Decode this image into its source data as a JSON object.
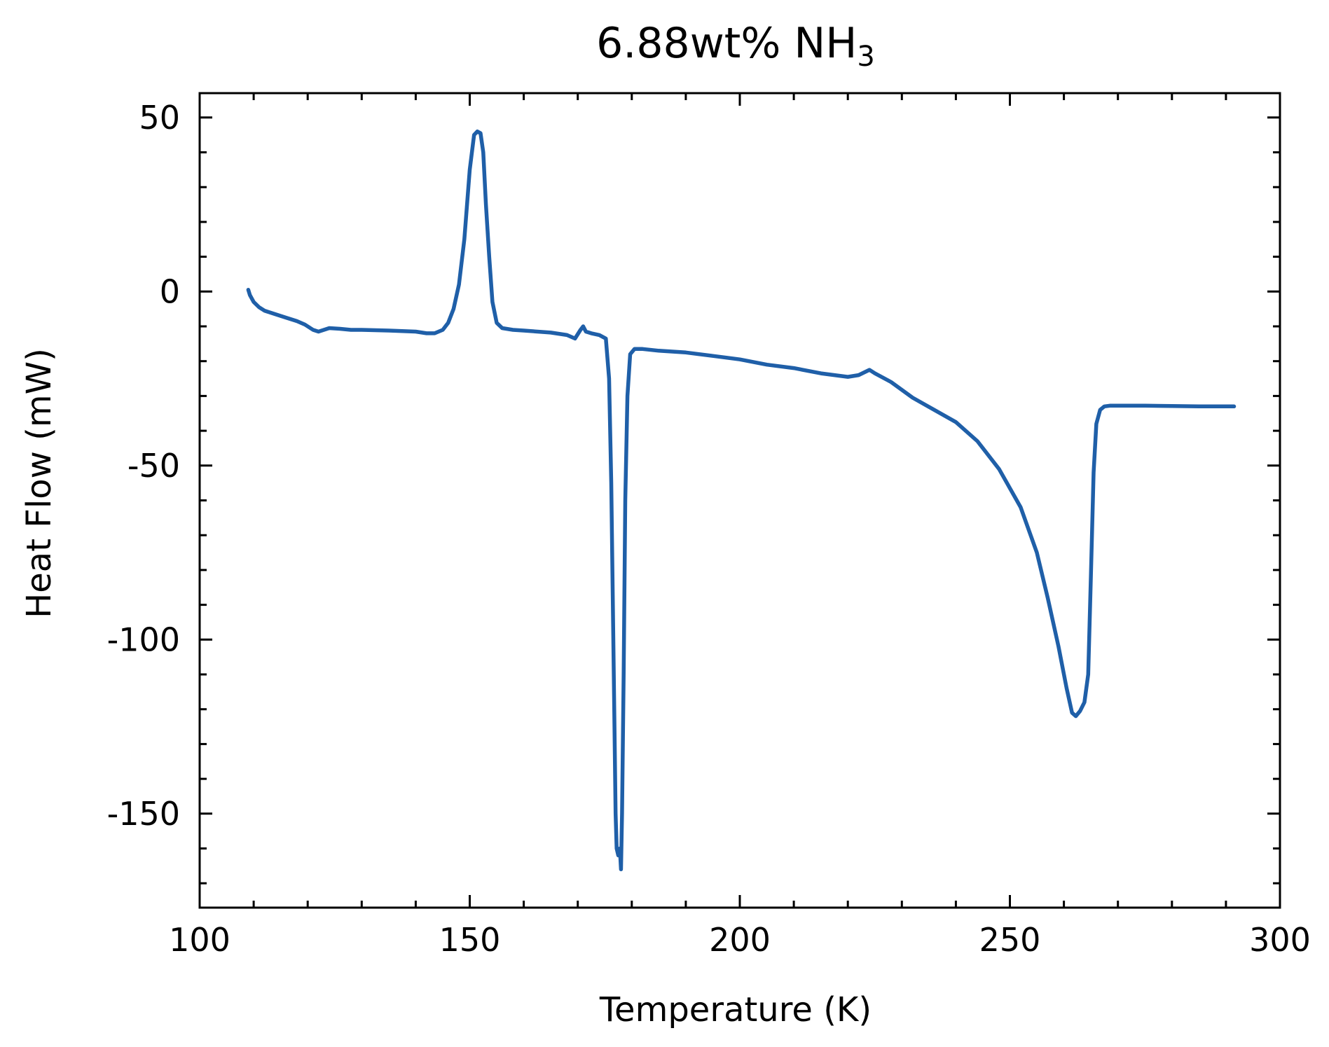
{
  "chart_data": {
    "type": "line",
    "title": "6.88wt% NH",
    "title_subscript": "3",
    "xlabel": "Temperature (K)",
    "ylabel": "Heat Flow (mW)",
    "xlim": [
      100,
      300
    ],
    "ylim": [
      -177,
      57
    ],
    "xticks": [
      100,
      150,
      200,
      250,
      300
    ],
    "xtick_labels": [
      "100",
      "150",
      "200",
      "250",
      "300"
    ],
    "yticks": [
      50,
      0,
      -50,
      -100,
      -150
    ],
    "ytick_labels": [
      "50",
      "0",
      "-50",
      "-100",
      "-150"
    ],
    "x_minor_step": 10,
    "y_minor_step": 10,
    "grid": false,
    "legend": "none",
    "series": [
      {
        "color": "#1f5fa8",
        "x": [
          109.0,
          109.3,
          110,
          111,
          112,
          114,
          116,
          118,
          119.5,
          121,
          122,
          123,
          124,
          126,
          128,
          129.5,
          130,
          135,
          140,
          142,
          143.5,
          145,
          146,
          147,
          148,
          149,
          150,
          150.8,
          151.4,
          152,
          152.5,
          153,
          153.6,
          154.2,
          155,
          156,
          158,
          160,
          165,
          168,
          169.5,
          170.5,
          171,
          171.5,
          172.5,
          174,
          175.2,
          175.8,
          176.2,
          176.5,
          176.8,
          177.0,
          177.2,
          177.5,
          177.8,
          178.0,
          178.2,
          178.5,
          178.8,
          179.2,
          179.7,
          180.5,
          182,
          185,
          190,
          195,
          200,
          205,
          210,
          215,
          220,
          222,
          224,
          225,
          228,
          232,
          236,
          240,
          244,
          248,
          252,
          255,
          257,
          259,
          260.5,
          261.5,
          262.2,
          263,
          263.8,
          264.5,
          265,
          265.5,
          266,
          266.7,
          267.5,
          268.5,
          270,
          275,
          280,
          285,
          290,
          291.5
        ],
        "y": [
          0.5,
          -1,
          -3,
          -4.5,
          -5.5,
          -6.5,
          -7.5,
          -8.5,
          -9.5,
          -11,
          -11.5,
          -11,
          -10.5,
          -10.7,
          -11,
          -11,
          -11,
          -11.2,
          -11.5,
          -12,
          -12,
          -11,
          -9,
          -5,
          2,
          15,
          35,
          45,
          46,
          45.5,
          40,
          25,
          10,
          -3,
          -9,
          -10.5,
          -11,
          -11.2,
          -11.8,
          -12.5,
          -13.5,
          -11,
          -10,
          -11.5,
          -12,
          -12.5,
          -13.5,
          -25,
          -55,
          -90,
          -125,
          -150,
          -160,
          -162,
          -160,
          -166,
          -150,
          -110,
          -60,
          -30,
          -18,
          -16.5,
          -16.5,
          -17,
          -17.5,
          -18.5,
          -19.5,
          -21,
          -22,
          -23.5,
          -24.5,
          -24,
          -22.5,
          -23.5,
          -26,
          -30.5,
          -34,
          -37.5,
          -43,
          -51,
          -62,
          -75,
          -88,
          -102,
          -114,
          -121,
          -122,
          -120.5,
          -118,
          -110,
          -82,
          -52,
          -38,
          -34,
          -33,
          -32.8,
          -32.8,
          -32.8,
          -32.9,
          -33,
          -33,
          -33
        ]
      }
    ]
  }
}
